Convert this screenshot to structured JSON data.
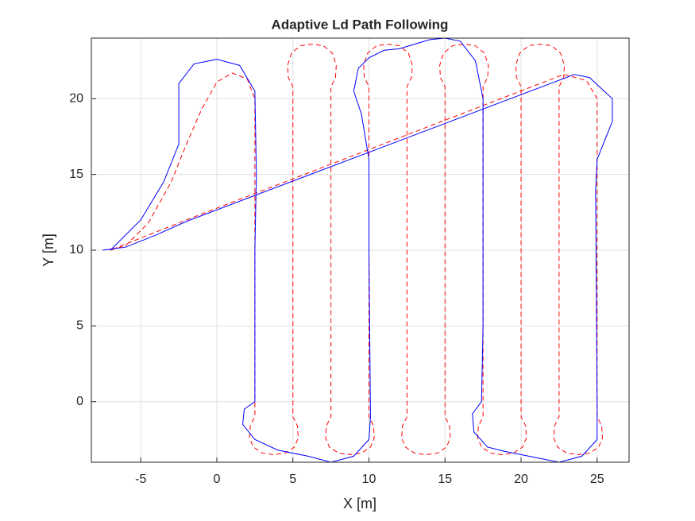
{
  "chart_data": {
    "type": "line",
    "title": "Adaptive Ld Path Following",
    "xlabel": "X [m]",
    "ylabel": "Y [m]",
    "xlim": [
      -8.25,
      27.1
    ],
    "ylim": [
      -4,
      24
    ],
    "xticks": [
      -5,
      0,
      5,
      10,
      15,
      20,
      25
    ],
    "yticks": [
      0,
      5,
      10,
      15,
      20
    ],
    "grid": true,
    "series": [
      {
        "color": "#ff0000",
        "linestyle": "--",
        "x": [
          -7,
          -6,
          -4.5,
          -3,
          -2,
          -1,
          0,
          1,
          2,
          2.5,
          2.5,
          2.5,
          2.2,
          2.15,
          2.4,
          3.0,
          3.75,
          4.5,
          5.1,
          5.35,
          5.3,
          5,
          5,
          5,
          5,
          4.7,
          4.65,
          4.9,
          5.5,
          6.25,
          7.0,
          7.6,
          7.85,
          7.8,
          7.5,
          7.5,
          7.5,
          7.5,
          7.2,
          7.15,
          7.4,
          8.0,
          8.75,
          9.5,
          10.1,
          10.35,
          10.3,
          10,
          10,
          10,
          10,
          9.7,
          9.65,
          9.9,
          10.5,
          11.25,
          12.0,
          12.6,
          12.85,
          12.8,
          12.5,
          12.5,
          12.5,
          12.5,
          12.2,
          12.15,
          12.4,
          13.0,
          13.75,
          14.5,
          15.1,
          15.35,
          15.3,
          15,
          15,
          15,
          15,
          14.7,
          14.65,
          14.9,
          15.5,
          16.25,
          17.0,
          17.6,
          17.85,
          17.8,
          17.5,
          17.5,
          17.5,
          17.5,
          17.2,
          17.15,
          17.4,
          18.0,
          18.75,
          19.5,
          20.1,
          20.35,
          20.3,
          20,
          20,
          20,
          20,
          19.7,
          19.65,
          19.9,
          20.5,
          21.25,
          22.0,
          22.6,
          22.85,
          22.8,
          22.5,
          22.5,
          22.5,
          22.5,
          22.2,
          22.15,
          22.4,
          23.0,
          23.75,
          24.5,
          25.1,
          25.35,
          25.3,
          25,
          25,
          25,
          24.3,
          22.8,
          -2,
          -7
        ],
        "values": [
          10,
          10.3,
          11.8,
          14.5,
          17,
          19.3,
          21.1,
          21.7,
          21.3,
          20,
          -0.5,
          -1.0,
          -1.6,
          -2.4,
          -3.0,
          -3.4,
          -3.5,
          -3.4,
          -3.0,
          -2.4,
          -1.6,
          -1,
          -0.5,
          20,
          20.8,
          21.4,
          22.2,
          23.0,
          23.5,
          23.6,
          23.5,
          23.0,
          22.2,
          21.4,
          20.8,
          20,
          -0.5,
          -1.0,
          -1.6,
          -2.4,
          -3.0,
          -3.4,
          -3.5,
          -3.4,
          -3.0,
          -2.4,
          -1.6,
          -1,
          -0.5,
          20,
          20.8,
          21.4,
          22.2,
          23.0,
          23.5,
          23.6,
          23.5,
          23.0,
          22.2,
          21.4,
          20.8,
          20,
          -0.5,
          -1,
          -1.6,
          -2.4,
          -3.0,
          -3.4,
          -3.5,
          -3.4,
          -3.0,
          -2.4,
          -1.6,
          -1,
          -0.5,
          20,
          20.8,
          21.4,
          22.2,
          23.0,
          23.5,
          23.6,
          23.5,
          23.0,
          22.2,
          21.4,
          20.8,
          20,
          -0.5,
          -1,
          -1.6,
          -2.4,
          -3.0,
          -3.4,
          -3.5,
          -3.4,
          -3.0,
          -2.4,
          -1.6,
          -1,
          -0.5,
          20,
          20.8,
          21.4,
          22.2,
          23.0,
          23.5,
          23.6,
          23.5,
          23.0,
          22.2,
          21.4,
          20.8,
          20,
          -0.5,
          -1,
          -1.6,
          -2.4,
          -3.0,
          -3.4,
          -3.5,
          -3.4,
          -3.0,
          -2.4,
          -1.6,
          -1,
          -0.5,
          20,
          21.2,
          21.6,
          12,
          10
        ]
      },
      {
        "color": "#0000ff",
        "linestyle": "-",
        "x": [
          -7,
          -5,
          -3.5,
          -2.5,
          -2.5,
          -1.5,
          0,
          1.5,
          2.5,
          2.6,
          2.5,
          2.5,
          1.8,
          1.7,
          2.5,
          4,
          6,
          7.5,
          9,
          10,
          10.1,
          10,
          10,
          9.5,
          9,
          9.3,
          10,
          11,
          12,
          13,
          14,
          15,
          16,
          17,
          17.5,
          17.5,
          17.4,
          16.8,
          16.9,
          17.8,
          19,
          21,
          22.5,
          24,
          25,
          25,
          24.9,
          25,
          26,
          26,
          24.5,
          23.5,
          -2,
          -4,
          -6,
          -7.5
        ],
        "values": [
          10,
          12,
          14.5,
          17,
          21,
          22.3,
          22.6,
          22.2,
          20.5,
          15,
          10,
          0,
          -0.5,
          -1.5,
          -2.5,
          -3.2,
          -3.6,
          -4,
          -3.6,
          -2.5,
          -1,
          10,
          16,
          19,
          20.5,
          22,
          22.7,
          23.2,
          23.3,
          23.6,
          23.9,
          24,
          23.8,
          22.5,
          20,
          5,
          0,
          -0.8,
          -2,
          -3,
          -3.3,
          -3.7,
          -4,
          -3.6,
          -2.5,
          -0.5,
          14,
          16,
          18.5,
          20,
          21.4,
          21.6,
          11.9,
          11,
          10.2,
          10
        ]
      }
    ]
  }
}
